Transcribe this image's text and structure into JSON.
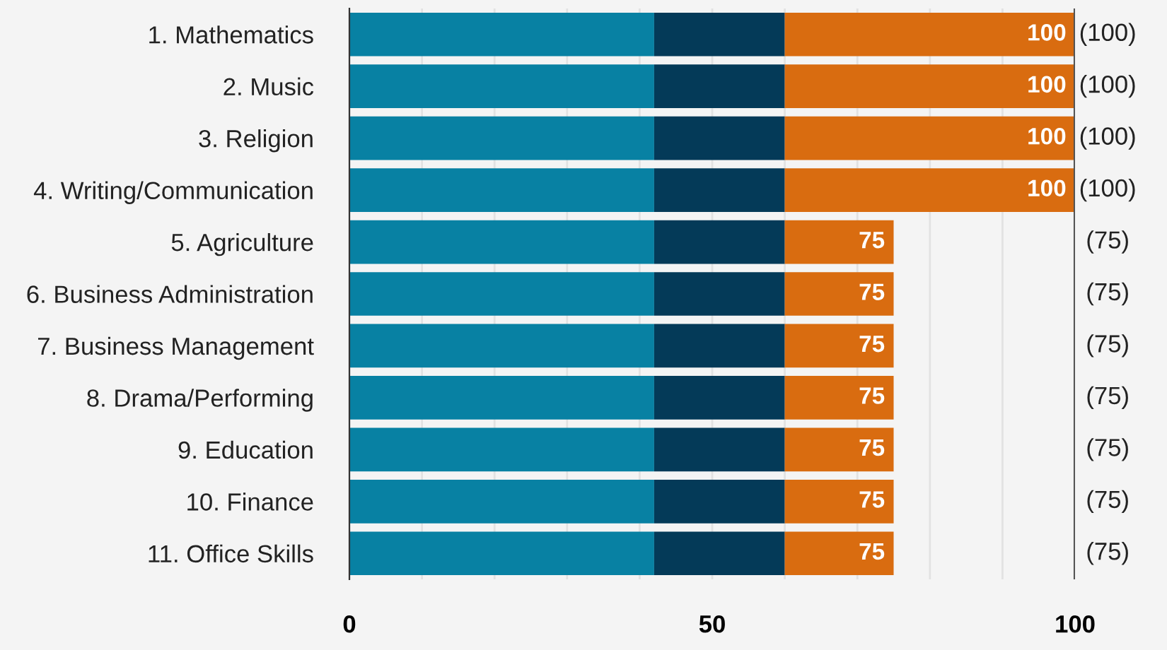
{
  "chart_data": {
    "type": "bar",
    "orientation": "horizontal",
    "stacked": true,
    "categories": [
      "1. Mathematics",
      "2. Music",
      "3. Religion",
      "4. Writing/Communication",
      "5. Agriculture",
      "6. Business Administration",
      "7. Business Management",
      "8. Drama/Performing",
      "9. Education",
      "10. Finance",
      "11. Office Skills"
    ],
    "series": [
      {
        "color": "#0881a3",
        "values": [
          42,
          42,
          42,
          42,
          42,
          42,
          42,
          42,
          42,
          42,
          42
        ]
      },
      {
        "color": "#043a58",
        "values": [
          18,
          18,
          18,
          18,
          18,
          18,
          18,
          18,
          18,
          18,
          18
        ]
      },
      {
        "color": "#d96c10",
        "values": [
          40,
          40,
          40,
          40,
          15,
          15,
          15,
          15,
          15,
          15,
          15
        ]
      }
    ],
    "totals": [
      "100",
      "100",
      "100",
      "100",
      "75",
      "75",
      "75",
      "75",
      "75",
      "75",
      "75"
    ],
    "annotations": [
      "(100)",
      "(100)",
      "(100)",
      "(100)",
      "(75)",
      "(75)",
      "(75)",
      "(75)",
      "(75)",
      "(75)",
      "(75)"
    ],
    "xlim": [
      0,
      100
    ],
    "xticks": [
      0,
      {
        "value": 10,
        "label": null
      },
      {
        "value": 20,
        "label": null
      },
      {
        "value": 30,
        "label": null
      },
      {
        "value": 40,
        "label": null
      },
      50,
      {
        "value": 60,
        "label": null
      },
      {
        "value": 70,
        "label": null
      },
      {
        "value": 80,
        "label": null
      },
      {
        "value": 90,
        "label": null
      },
      100
    ],
    "grid": "x",
    "ref_lines": [
      {
        "axis": "x",
        "value": 100,
        "color": "#555555"
      }
    ]
  }
}
